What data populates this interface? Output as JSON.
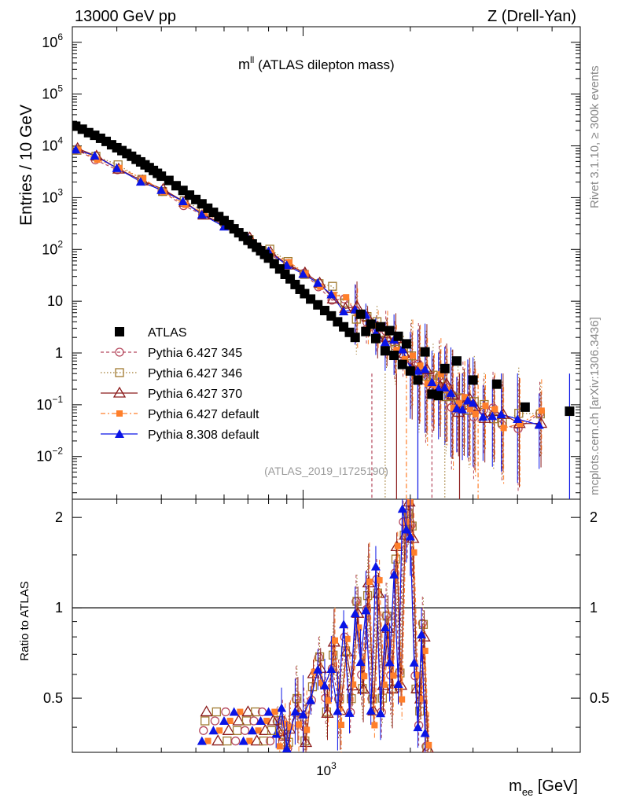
{
  "header": {
    "left": "13000 GeV pp",
    "right": "Z (Drell-Yan)"
  },
  "side_labels": {
    "rivet": "Rivet 3.1.10, ≥ 300k events",
    "mcplots": "mcplots.cern.ch [arXiv:1306.3436]"
  },
  "observable": {
    "symbol": "m",
    "symbol_sup": "ll",
    "text": "(ATLAS dilepton mass)"
  },
  "analysis_id": "(ATLAS_2019_I1725190)",
  "axes": {
    "ylabel_main": "Entries / 10 GeV",
    "ylabel_ratio": "Ratio to ATLAS",
    "xlabel_base": "m",
    "xlabel_sub": "ee",
    "xlabel_unit": "[GeV]",
    "x_tick_label": "10",
    "x_tick_sup": "3"
  },
  "colors": {
    "atlas": "#000000",
    "p345": "#b5485d",
    "p346": "#a07a30",
    "p370": "#8b1a1a",
    "p6def": "#ff7f2a",
    "p8def": "#0a14e6"
  },
  "chart_data": {
    "type": "scatter",
    "x_scale": "log",
    "y_scale": "log",
    "xlim": [
      225,
      6000
    ],
    "ylim_main": [
      0.0015,
      2000000
    ],
    "ylim_ratio": [
      0.33,
      2.3
    ],
    "main_y_ticks": [
      {
        "v": 1000000,
        "base": "10",
        "sup": "6"
      },
      {
        "v": 100000,
        "base": "10",
        "sup": "5"
      },
      {
        "v": 10000,
        "base": "10",
        "sup": "4"
      },
      {
        "v": 1000,
        "base": "10",
        "sup": "3"
      },
      {
        "v": 100,
        "base": "10",
        "sup": "2"
      },
      {
        "v": 10,
        "base": "10",
        "sup": ""
      },
      {
        "v": 1,
        "base": "1",
        "sup": ""
      },
      {
        "v": 0.1,
        "base": "10",
        "sup": "−1"
      },
      {
        "v": 0.01,
        "base": "10",
        "sup": "−2"
      }
    ],
    "ratio_y_ticks": [
      "0.5",
      "1",
      "2"
    ],
    "legend": [
      {
        "key": "atlas",
        "label": "ATLAS"
      },
      {
        "key": "p345",
        "label": "Pythia 6.427 345"
      },
      {
        "key": "p346",
        "label": "Pythia 6.427 346"
      },
      {
        "key": "p370",
        "label": "Pythia 6.427 370"
      },
      {
        "key": "p6def",
        "label": "Pythia 6.427 default"
      },
      {
        "key": "p8def",
        "label": "Pythia 8.308 default"
      }
    ],
    "atlas": {
      "x": [
        230,
        240,
        250,
        260,
        270,
        280,
        290,
        300,
        310,
        320,
        330,
        340,
        350,
        360,
        370,
        380,
        390,
        400,
        420,
        440,
        460,
        480,
        500,
        520,
        540,
        560,
        580,
        600,
        620,
        640,
        660,
        680,
        700,
        720,
        740,
        760,
        780,
        800,
        830,
        860,
        890,
        920,
        950,
        980,
        1010,
        1050,
        1100,
        1150,
        1200,
        1250,
        1300,
        1350,
        1400,
        1450,
        1500,
        1550,
        1600,
        1650,
        1700,
        1750,
        1800,
        1850,
        1900,
        1950,
        2000,
        2100,
        2200,
        2300,
        2400,
        2500,
        2700,
        3000,
        3500,
        4200,
        5600
      ],
      "y": [
        24000,
        21000,
        18000,
        16000,
        14000,
        12200,
        10500,
        9200,
        8100,
        7100,
        6300,
        5500,
        4900,
        4300,
        3800,
        3350,
        2950,
        2600,
        2150,
        1700,
        1380,
        1120,
        920,
        760,
        625,
        520,
        430,
        360,
        300,
        250,
        210,
        178,
        150,
        128,
        110,
        94,
        80,
        68,
        53,
        42,
        33,
        27,
        21,
        17,
        14,
        11,
        8.5,
        6.6,
        5.2,
        4.0,
        3.2,
        2.5,
        2.0,
        5.6,
        2.6,
        3.6,
        1.9,
        3.2,
        1.1,
        2.7,
        0.9,
        2.1,
        0.6,
        1.5,
        0.45,
        0.3,
        1.05,
        0.16,
        0.15,
        0.5,
        0.7,
        0.3,
        0.25,
        0.09,
        0.075
      ]
    },
    "p8def_curve": {
      "x": [
        230,
        260,
        300,
        350,
        400,
        460,
        520,
        600,
        700,
        800,
        900,
        1000,
        1100,
        1200,
        1300,
        1400,
        1500,
        1600,
        1700,
        1800,
        1900,
        2000,
        2100,
        2200,
        2300,
        2400,
        2500,
        2600,
        2700,
        2800,
        2900,
        3000,
        3200,
        3400,
        3600,
        4000,
        4600
      ],
      "y": [
        8500,
        6000,
        3800,
        2200,
        1350,
        800,
        500,
        290,
        155,
        90,
        54,
        34,
        21,
        14,
        9.2,
        6.2,
        4.3,
        3.0,
        2.1,
        1.45,
        1.0,
        0.72,
        0.5,
        0.37,
        0.27,
        0.3,
        0.2,
        0.13,
        0.1,
        0.11,
        0.1,
        0.09,
        0.08,
        0.07,
        0.05,
        0.05,
        0.06
      ]
    },
    "ratio_points": {
      "x": [
        840,
        870,
        900,
        950,
        1000,
        1050,
        1100,
        1150,
        1200,
        1250,
        1300,
        1350,
        1400,
        1450,
        1500,
        1550,
        1600,
        1650,
        1700,
        1750,
        1800,
        1850,
        1900,
        1950,
        2000,
        2050,
        2100,
        2150,
        2200
      ],
      "y": [
        0.38,
        0.42,
        0.36,
        0.45,
        0.4,
        0.55,
        0.62,
        0.5,
        0.7,
        0.45,
        0.8,
        0.5,
        0.95,
        0.6,
        1.1,
        0.45,
        1.25,
        0.5,
        0.85,
        0.6,
        1.45,
        0.55,
        1.95,
        2.05,
        1.7,
        0.6,
        0.45,
        0.8,
        0.35
      ]
    }
  }
}
